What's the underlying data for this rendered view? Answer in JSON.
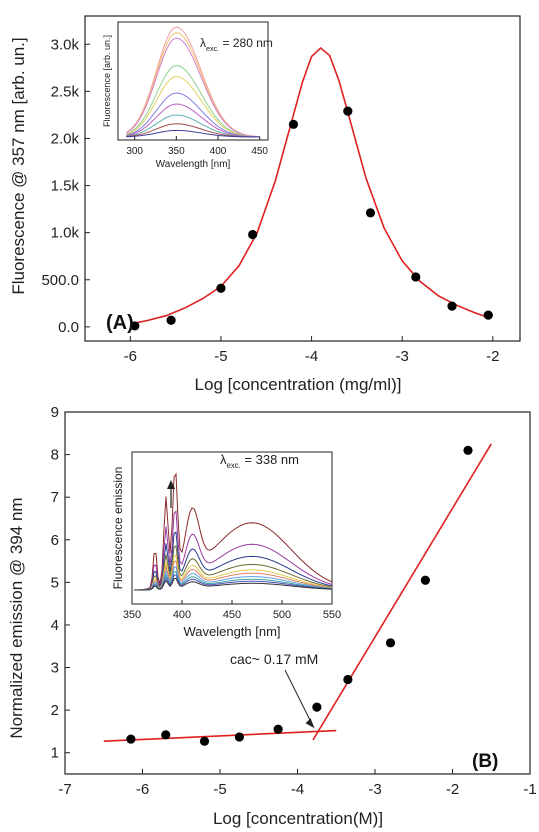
{
  "chart_data": [
    {
      "panel": "(A)",
      "type": "scatter",
      "xlabel": "Log [concentration (mg/ml)]",
      "ylabel": "Fluorescence @ 357 nm [arb. un.]",
      "xlim": [
        -6.5,
        -1.7
      ],
      "ylim": [
        -150,
        3300
      ],
      "xticks": [
        -6,
        -5,
        -4,
        -3,
        -2
      ],
      "xticklabels": [
        "-6",
        "-5",
        "-4",
        "-3",
        "-2"
      ],
      "yticks": [
        0,
        500,
        1000,
        1500,
        2000,
        2500,
        3000
      ],
      "yticklabels": [
        "0.0",
        "500.0",
        "1.0k",
        "1.5k",
        "2.0k",
        "2.5k",
        "3.0k"
      ],
      "grid": false,
      "series": [
        {
          "kind": "points",
          "color": "#000000",
          "x": [
            -5.95,
            -5.55,
            -5.0,
            -4.65,
            -4.2,
            -3.6,
            -3.35,
            -2.85,
            -2.45,
            -2.05
          ],
          "y": [
            10,
            70,
            410,
            980,
            2150,
            2290,
            1210,
            530,
            220,
            125
          ]
        },
        {
          "kind": "fit-line",
          "color": "#e02020",
          "x": [
            -6.0,
            -5.8,
            -5.6,
            -5.4,
            -5.2,
            -5.0,
            -4.8,
            -4.6,
            -4.4,
            -4.2,
            -4.1,
            -4.0,
            -3.9,
            -3.8,
            -3.7,
            -3.6,
            -3.4,
            -3.2,
            -3.0,
            -2.8,
            -2.6,
            -2.4,
            -2.2,
            -2.05
          ],
          "y": [
            30,
            70,
            120,
            200,
            300,
            430,
            650,
            1000,
            1550,
            2250,
            2600,
            2870,
            2960,
            2880,
            2620,
            2280,
            1580,
            1050,
            700,
            480,
            330,
            230,
            150,
            100
          ]
        }
      ],
      "inset": {
        "xlabel": "Wavelength [nm]",
        "ylabel": "Fluorescence [arb. un.]",
        "xlim": [
          280,
          460
        ],
        "xticks": [
          300,
          350,
          400,
          450
        ],
        "xticklabels": [
          "300",
          "350",
          "400",
          "450"
        ],
        "annotation": {
          "symbol": "λ",
          "sub": "exc.",
          "text": " = 280 nm"
        },
        "peak_x": 350,
        "width": 42,
        "curves": [
          {
            "color": "#f4a0a0",
            "peak": 1.0
          },
          {
            "color": "#f0c070",
            "peak": 0.95
          },
          {
            "color": "#d080d0",
            "peak": 0.9
          },
          {
            "color": "#90d090",
            "peak": 0.65
          },
          {
            "color": "#e0d060",
            "peak": 0.55
          },
          {
            "color": "#8080e0",
            "peak": 0.4
          },
          {
            "color": "#c060c0",
            "peak": 0.3
          },
          {
            "color": "#60b0b0",
            "peak": 0.2
          },
          {
            "color": "#a05050",
            "peak": 0.12
          },
          {
            "color": "#4040a0",
            "peak": 0.06
          }
        ]
      }
    },
    {
      "panel": "(B)",
      "type": "scatter",
      "xlabel": "Log [concentration(M)]",
      "ylabel": "Normalized emission @ 394 nm",
      "xlim": [
        -7,
        -1
      ],
      "ylim": [
        0.5,
        9
      ],
      "xticks": [
        -7,
        -6,
        -5,
        -4,
        -3,
        -2,
        -1
      ],
      "xticklabels": [
        "-7",
        "-6",
        "-5",
        "-4",
        "-3",
        "-2",
        "-1"
      ],
      "yticks": [
        1,
        2,
        3,
        4,
        5,
        6,
        7,
        8,
        9
      ],
      "yticklabels": [
        "1",
        "2",
        "3",
        "4",
        "5",
        "6",
        "7",
        "8",
        "9"
      ],
      "grid": false,
      "annotation": "cac~ 0.17 mM",
      "series": [
        {
          "kind": "points",
          "color": "#000000",
          "x": [
            -6.15,
            -5.7,
            -5.2,
            -4.75,
            -4.25,
            -3.75,
            -3.35,
            -2.8,
            -2.35,
            -1.8
          ],
          "y": [
            1.32,
            1.42,
            1.27,
            1.37,
            1.55,
            2.07,
            2.72,
            3.58,
            5.05,
            8.1
          ]
        },
        {
          "kind": "fit-line",
          "color": "#e02020",
          "x": [
            -6.5,
            -3.5
          ],
          "y": [
            1.27,
            1.52
          ]
        },
        {
          "kind": "fit-line",
          "color": "#e02020",
          "x": [
            -3.8,
            -1.5
          ],
          "y": [
            1.3,
            8.25
          ]
        }
      ],
      "inset": {
        "xlabel": "Wavelength [nm]",
        "ylabel": "Fluorescence emission",
        "xlim": [
          350,
          550
        ],
        "xticks": [
          350,
          400,
          450,
          500,
          550
        ],
        "xticklabels": [
          "350",
          "400",
          "450",
          "500",
          "550"
        ],
        "annotation": {
          "symbol": "λ",
          "sub": "exc.",
          "text": " = 338 nm"
        },
        "curves": [
          {
            "color": "#8b2a2a",
            "scale": 1.0
          },
          {
            "color": "#9a3aa0",
            "scale": 0.68
          },
          {
            "color": "#283a90",
            "scale": 0.5
          },
          {
            "color": "#6a6a30",
            "scale": 0.38
          },
          {
            "color": "#e0d050",
            "scale": 0.3
          },
          {
            "color": "#e08060",
            "scale": 0.25
          },
          {
            "color": "#60a0e0",
            "scale": 0.2
          },
          {
            "color": "#40a0a0",
            "scale": 0.16
          },
          {
            "color": "#5050c0",
            "scale": 0.13
          },
          {
            "color": "#303030",
            "scale": 0.1
          }
        ]
      }
    }
  ]
}
